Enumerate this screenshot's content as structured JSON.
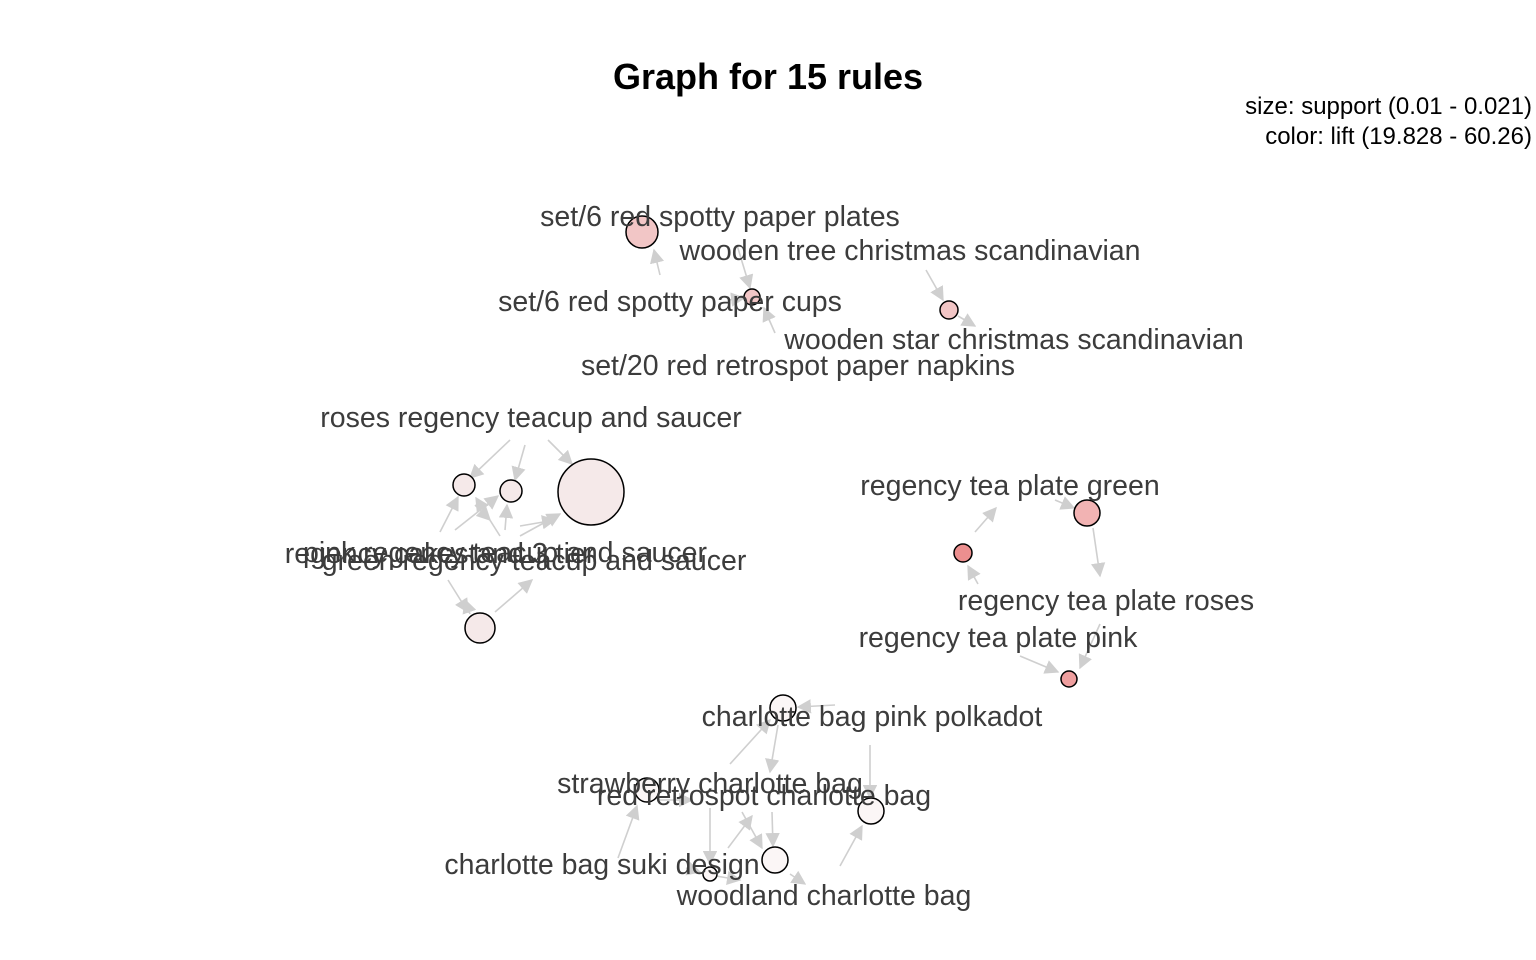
{
  "title": "Graph for 15 rules",
  "legend": {
    "size": "size: support (0.01 - 0.021)",
    "color": "color: lift (19.828 - 60.26)"
  },
  "labels": {
    "set6_plates": "set/6 red spotty paper plates",
    "wooden_tree": "wooden tree christmas scandinavian",
    "set6_cups": "set/6 red spotty paper cups",
    "wooden_star": "wooden star christmas scandinavian",
    "set20_napkins": "set/20 red retrospot paper napkins",
    "roses_teacup": "roses regency teacup and saucer",
    "regency_cakestand": "regency cakestand 3 tier",
    "pink_teacup": "pink regency teacup and saucer",
    "green_teacup": "green regency teacup and saucer",
    "plate_green": "regency tea plate green",
    "plate_roses": "regency tea plate roses",
    "plate_pink": "regency tea plate pink",
    "charlotte_pink": "charlotte bag pink polkadot",
    "charlotte_strawberry": "strawberry charlotte bag",
    "charlotte_red": "red retrospot charlotte bag",
    "charlotte_suki": "charlotte bag suki design",
    "charlotte_woodland": "woodland charlotte bag"
  },
  "colors": {
    "node_low_lift": "#f5e9e9",
    "node_mid_lift": "#f2c6c6",
    "node_high_lift": "#ec8f8f",
    "edge": "#cfcfcf"
  }
}
